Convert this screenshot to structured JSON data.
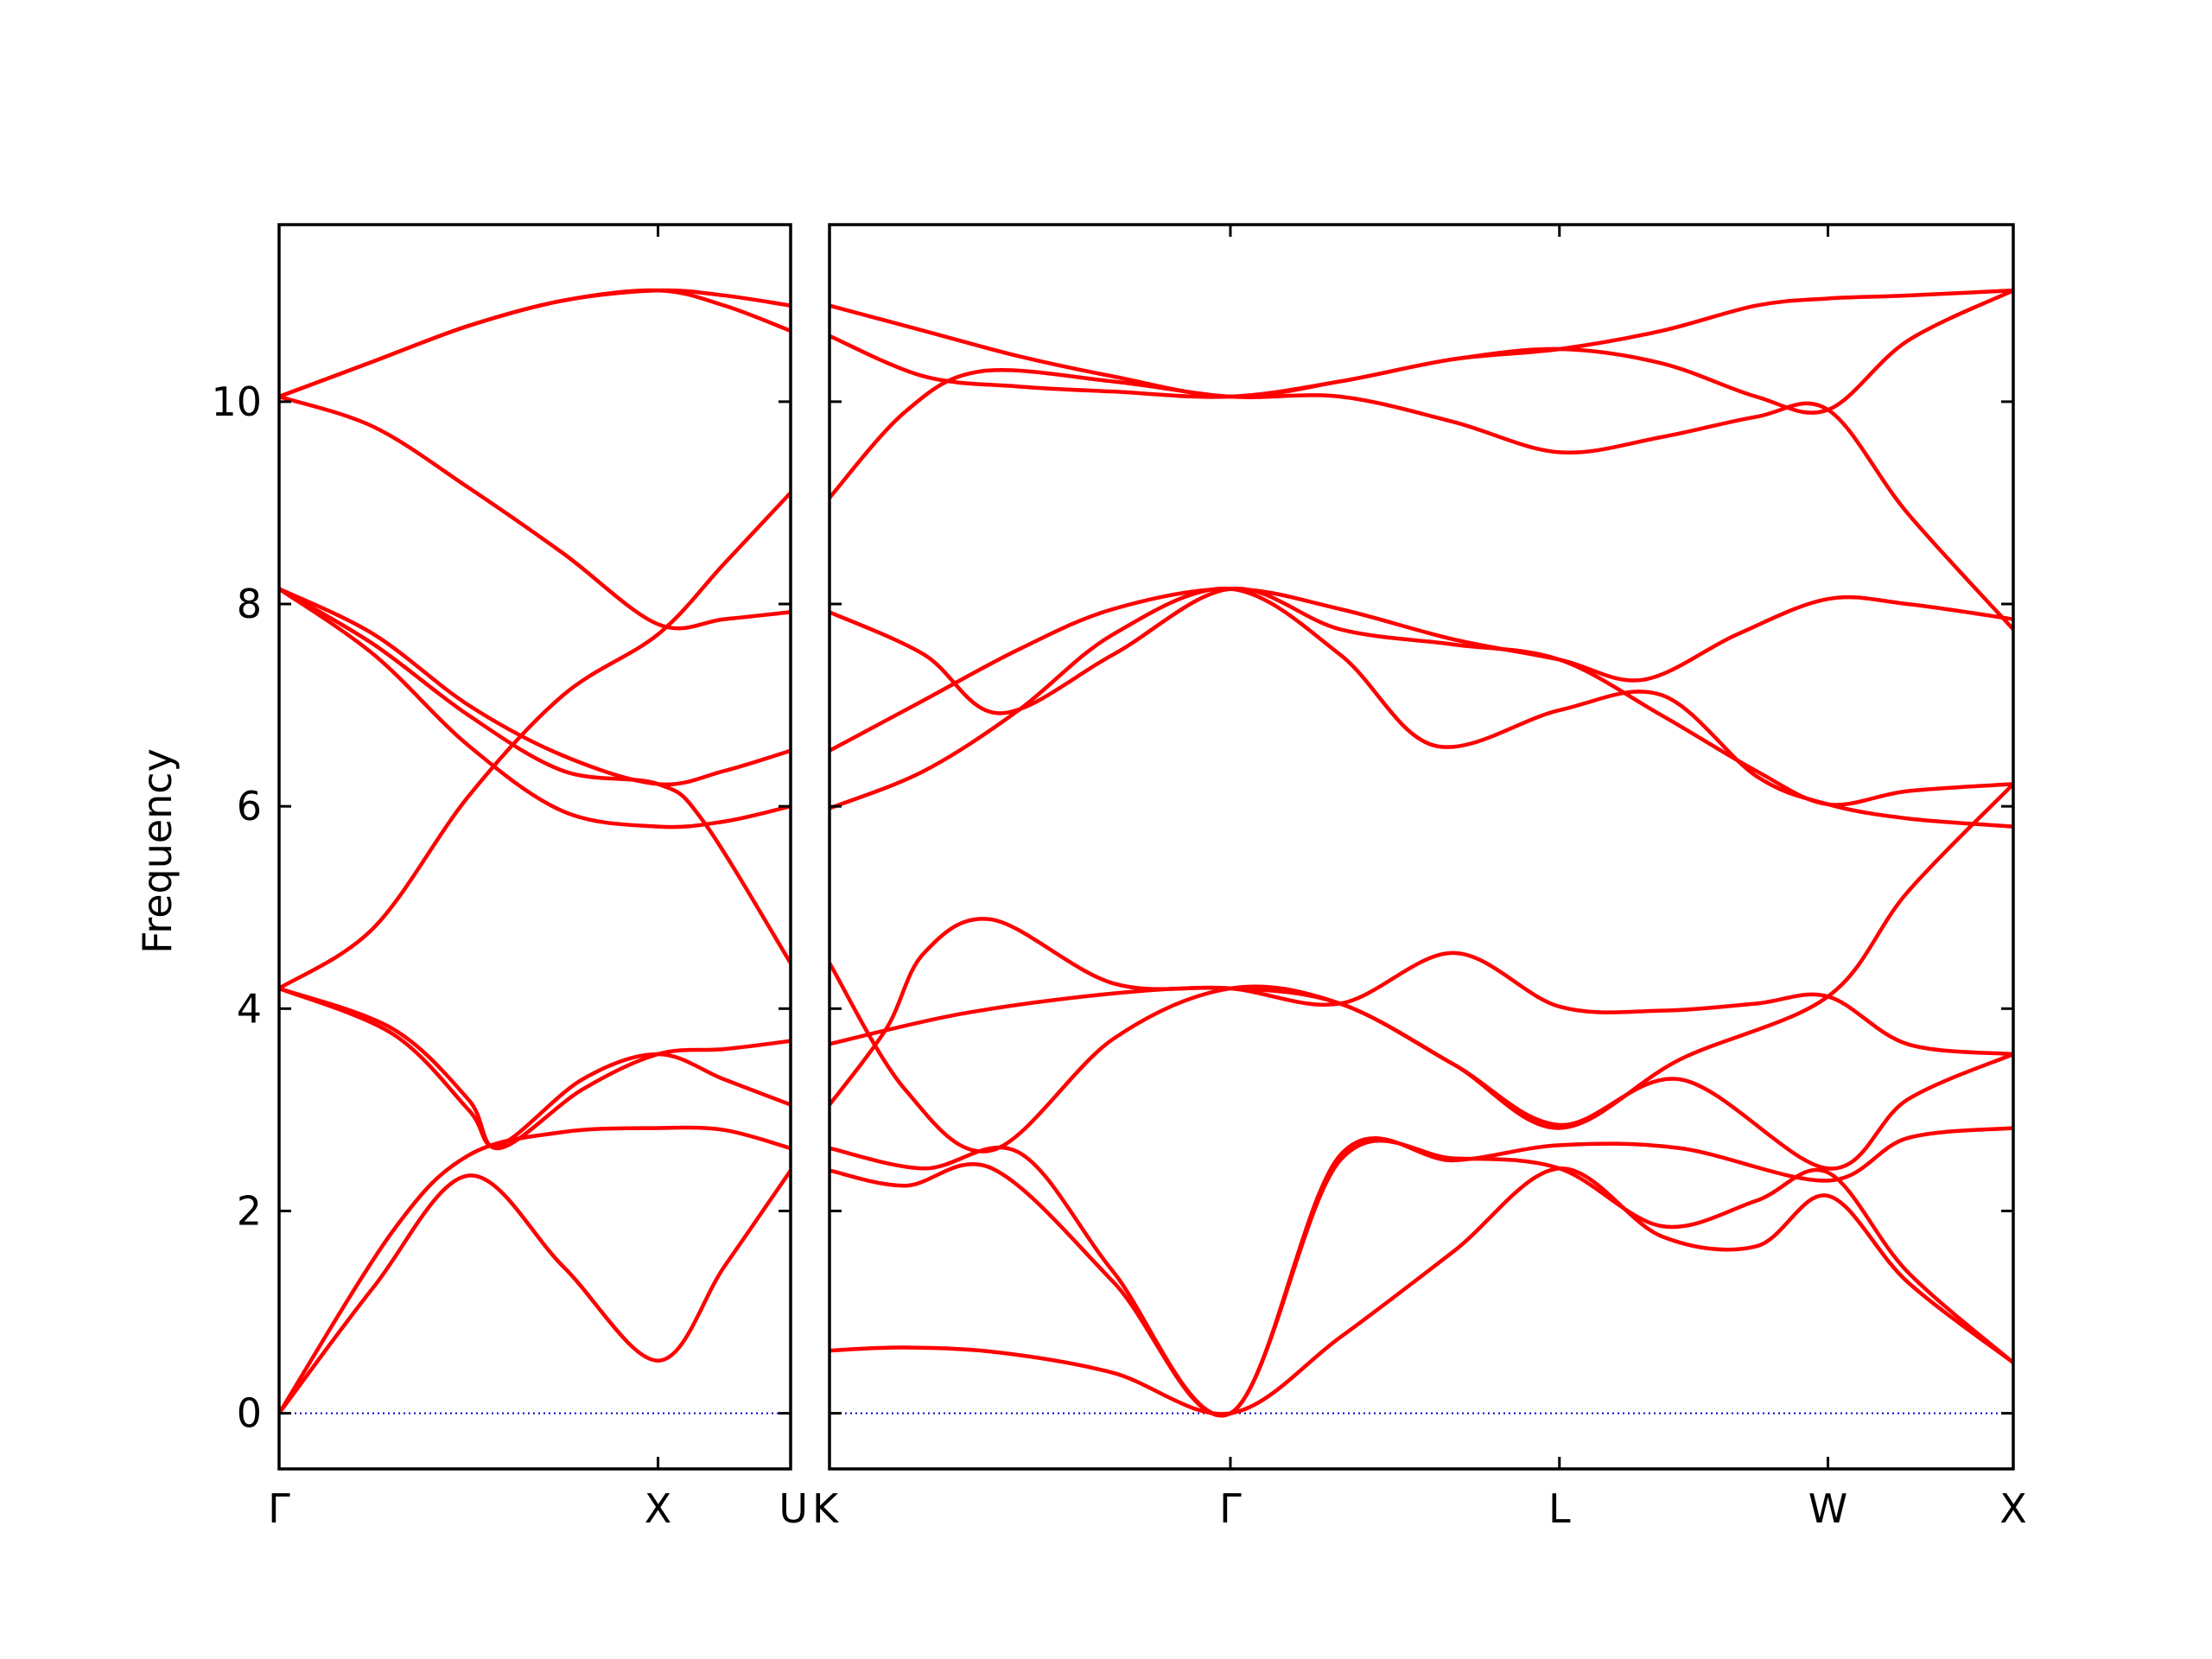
{
  "chart_data": {
    "type": "line",
    "ylabel": "Frequency",
    "ylim": [
      -0.55,
      11.75
    ],
    "yticks": [
      "0",
      "2",
      "4",
      "6",
      "8",
      "10"
    ],
    "grid": false,
    "line_color": "#ff0000",
    "zero_line_color": "#0000cc",
    "panels": [
      {
        "x_range": [
          0,
          1.35
        ],
        "xticks": [
          {
            "position": 0,
            "label": "Γ"
          },
          {
            "position": 1.0,
            "label": "X"
          },
          {
            "position": 1.35,
            "label": "U"
          }
        ],
        "bands": [
          {
            "x": [
              0,
              0.25,
              0.5,
              0.75,
              1.0,
              1.175,
              1.35
            ],
            "y": [
              0,
              1.25,
              2.35,
              1.45,
              0.52,
              1.45,
              2.4
            ]
          },
          {
            "x": [
              0,
              0.3,
              0.5,
              0.75,
              1.0,
              1.175,
              1.35
            ],
            "y": [
              0,
              1.8,
              2.55,
              2.78,
              2.82,
              2.8,
              2.62
            ]
          },
          {
            "x": [
              0,
              0.3,
              0.5,
              0.58,
              0.8,
              1.0,
              1.175,
              1.35
            ],
            "y": [
              4.2,
              3.75,
              3.0,
              2.65,
              3.3,
              3.55,
              3.3,
              3.05
            ]
          },
          {
            "x": [
              0,
              0.3,
              0.5,
              0.58,
              0.8,
              1.0,
              1.175,
              1.35
            ],
            "y": [
              4.2,
              3.8,
              3.1,
              2.62,
              3.2,
              3.55,
              3.6,
              3.68
            ]
          },
          {
            "x": [
              0,
              0.25,
              0.5,
              0.75,
              1.0,
              1.175,
              1.35
            ],
            "y": [
              4.2,
              4.8,
              6.1,
              7.1,
              7.7,
              8.4,
              9.1
            ]
          },
          {
            "x": [
              0,
              0.25,
              0.5,
              0.75,
              1.0,
              1.175,
              1.35
            ],
            "y": [
              8.15,
              7.5,
              6.6,
              5.95,
              5.8,
              5.85,
              6.0
            ]
          },
          {
            "x": [
              0,
              0.25,
              0.5,
              0.75,
              1.0,
              1.12,
              1.35
            ],
            "y": [
              8.15,
              7.6,
              6.9,
              6.35,
              6.22,
              5.85,
              4.45
            ]
          },
          {
            "x": [
              0,
              0.25,
              0.5,
              0.75,
              1.0,
              1.175,
              1.35
            ],
            "y": [
              8.15,
              7.7,
              7.0,
              6.5,
              6.22,
              6.35,
              6.55
            ]
          },
          {
            "x": [
              0,
              0.25,
              0.5,
              0.75,
              1.0,
              1.175,
              1.35
            ],
            "y": [
              10.05,
              9.75,
              9.15,
              8.5,
              7.8,
              7.85,
              7.92
            ]
          },
          {
            "x": [
              0,
              0.25,
              0.5,
              0.75,
              1.0,
              1.175,
              1.35
            ],
            "y": [
              10.05,
              10.4,
              10.75,
              11.0,
              11.1,
              11.05,
              10.95
            ]
          },
          {
            "x": [
              0,
              0.25,
              0.5,
              0.75,
              1.0,
              1.175,
              1.35
            ],
            "y": [
              10.05,
              10.4,
              10.75,
              11.0,
              11.1,
              10.95,
              10.7
            ]
          }
        ]
      },
      {
        "x_range": [
          1.35,
          4.48
        ],
        "xticks": [
          {
            "position": 1.35,
            "label": "K"
          },
          {
            "position": 2.41,
            "label": "Γ"
          },
          {
            "position": 3.28,
            "label": "L"
          },
          {
            "position": 3.99,
            "label": "W"
          },
          {
            "position": 4.48,
            "label": "X"
          }
        ],
        "bands": [
          {
            "x": [
              1.35,
              1.55,
              1.8,
              2.1,
              2.41,
              2.7,
              3.0,
              3.28,
              3.55,
              3.8,
              3.99,
              4.2,
              4.48
            ],
            "y": [
              0.62,
              0.65,
              0.6,
              0.4,
              0.0,
              0.75,
              1.6,
              2.42,
              1.75,
              1.65,
              2.15,
              1.3,
              0.5
            ]
          },
          {
            "x": [
              1.35,
              1.55,
              1.78,
              2.1,
              2.41,
              2.7,
              3.0,
              3.28,
              3.55,
              3.8,
              3.99,
              4.2,
              4.48
            ],
            "y": [
              2.4,
              2.25,
              2.42,
              1.3,
              0.0,
              2.5,
              2.52,
              2.42,
              1.85,
              2.1,
              2.38,
              1.4,
              0.5
            ]
          },
          {
            "x": [
              1.35,
              1.6,
              1.85,
              2.1,
              2.41,
              2.7,
              3.0,
              3.28,
              3.6,
              3.99,
              4.2,
              4.48
            ],
            "y": [
              2.62,
              2.42,
              2.58,
              1.4,
              0.0,
              2.55,
              2.5,
              2.65,
              2.62,
              2.3,
              2.72,
              2.82
            ]
          },
          {
            "x": [
              1.35,
              1.5,
              1.6,
              1.78,
              2.1,
              2.41,
              2.7,
              3.0,
              3.28,
              3.55,
              3.8,
              3.99,
              4.2,
              4.48
            ],
            "y": [
              3.05,
              3.8,
              4.55,
              4.88,
              4.25,
              4.2,
              4.05,
              4.55,
              4.02,
              3.98,
              4.05,
              4.12,
              3.65,
              3.55
            ]
          },
          {
            "x": [
              1.35,
              1.55,
              1.78,
              2.1,
              2.41,
              2.7,
              3.0,
              3.28,
              3.6,
              3.99,
              4.2,
              4.48
            ],
            "y": [
              4.45,
              3.2,
              2.6,
              3.7,
              4.2,
              4.05,
              3.45,
              2.85,
              3.3,
              2.42,
              3.1,
              3.55
            ]
          },
          {
            "x": [
              1.35,
              1.7,
              2.1,
              2.41,
              2.7,
              3.0,
              3.28,
              3.6,
              3.99,
              4.2,
              4.48
            ],
            "y": [
              3.65,
              3.95,
              4.15,
              4.2,
              4.05,
              3.45,
              2.82,
              3.5,
              4.12,
              5.15,
              6.22
            ]
          },
          {
            "x": [
              1.35,
              1.6,
              1.85,
              2.1,
              2.41,
              2.7,
              2.95,
              3.28,
              3.55,
              3.8,
              3.99,
              4.2,
              4.48
            ],
            "y": [
              5.98,
              6.35,
              6.95,
              7.7,
              8.15,
              7.5,
              6.6,
              6.95,
              7.1,
              6.3,
              6.02,
              5.88,
              5.8
            ]
          },
          {
            "x": [
              1.35,
              1.6,
              1.8,
              2.1,
              2.41,
              2.7,
              3.0,
              3.28,
              3.55,
              3.8,
              3.99,
              4.2,
              4.48
            ],
            "y": [
              7.92,
              7.5,
              6.92,
              7.5,
              8.15,
              7.75,
              7.6,
              7.45,
              6.9,
              6.35,
              6.02,
              6.15,
              6.22
            ]
          },
          {
            "x": [
              1.35,
              1.6,
              1.85,
              2.1,
              2.41,
              2.7,
              3.0,
              3.28,
              3.5,
              3.75,
              3.99,
              4.2,
              4.48
            ],
            "y": [
              6.55,
              7.05,
              7.55,
              7.95,
              8.15,
              7.95,
              7.65,
              7.45,
              7.25,
              7.7,
              8.05,
              8.0,
              7.85
            ]
          },
          {
            "x": [
              1.35,
              1.55,
              1.75,
              2.1,
              2.41,
              2.7,
              3.0,
              3.28,
              3.55,
              3.8,
              3.99,
              4.2,
              4.48
            ],
            "y": [
              9.05,
              9.9,
              10.3,
              10.2,
              10.05,
              10.05,
              9.8,
              9.5,
              9.65,
              9.85,
              9.92,
              8.9,
              7.75
            ]
          },
          {
            "x": [
              1.35,
              1.6,
              1.85,
              2.1,
              2.41,
              2.7,
              3.0,
              3.28,
              3.55,
              3.8,
              3.99,
              4.2,
              4.48
            ],
            "y": [
              10.65,
              10.25,
              10.15,
              10.1,
              10.05,
              10.2,
              10.42,
              10.52,
              10.38,
              10.05,
              9.92,
              10.6,
              11.1
            ]
          },
          {
            "x": [
              1.35,
              1.6,
              1.85,
              2.1,
              2.41,
              2.7,
              3.0,
              3.28,
              3.55,
              3.8,
              3.99,
              4.2,
              4.48
            ],
            "y": [
              10.95,
              10.7,
              10.45,
              10.25,
              10.05,
              10.2,
              10.42,
              10.52,
              10.7,
              10.95,
              11.02,
              11.05,
              11.1
            ]
          }
        ]
      }
    ]
  }
}
